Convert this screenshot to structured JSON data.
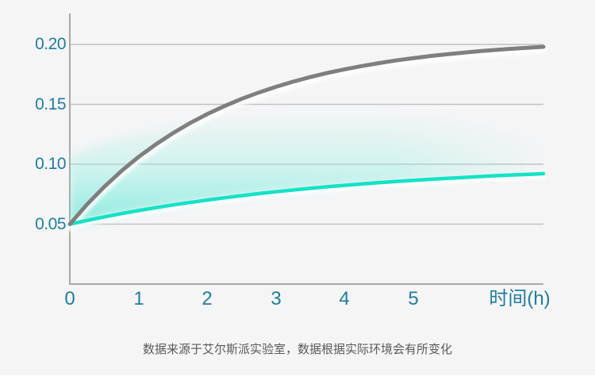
{
  "caption": "数据来源于艾尔斯派实验室，数据根据实际环境会有所变化",
  "colors": {
    "page": "#ffffff",
    "panel": "#f5f5f6",
    "grid": "#c2c2c4",
    "axis": "#a8a8aa",
    "tick_label": "#1e7d9f",
    "caption": "#595959",
    "series_gray": "#7f7f80",
    "series_teal": "#14e2c6",
    "band_top": "rgba(150,240,228,0)",
    "band_mid": "rgba(150,240,228,0.35)",
    "band_bottom": "rgba(60,228,205,0.6)"
  },
  "chart_data": {
    "type": "line",
    "title": "",
    "xlabel": "时间(h)",
    "ylabel": "",
    "grid": "horizontal",
    "legend": "none",
    "xlim": [
      0,
      6.9
    ],
    "ylim": [
      0,
      0.226
    ],
    "x_ticks": [
      {
        "value": 0,
        "label": "0"
      },
      {
        "value": 1,
        "label": "1"
      },
      {
        "value": 2,
        "label": "2"
      },
      {
        "value": 3,
        "label": "3"
      },
      {
        "value": 4,
        "label": "4"
      },
      {
        "value": 5,
        "label": "5"
      }
    ],
    "y_ticks": [
      {
        "value": 0.2,
        "label": "0.20"
      },
      {
        "value": 0.15,
        "label": "0.15"
      },
      {
        "value": 0.1,
        "label": "0.10"
      },
      {
        "value": 0.05,
        "label": "0.05"
      }
    ],
    "series": [
      {
        "name": "upper-gray-curve",
        "color": "#7f7f80",
        "x": [
          0,
          0.25,
          0.5,
          0.75,
          1,
          1.25,
          1.5,
          1.75,
          2,
          2.25,
          2.5,
          2.75,
          3,
          3.25,
          3.5,
          3.75,
          4,
          4.25,
          4.5,
          4.75,
          5,
          5.25,
          5.5,
          5.75,
          6,
          6.25,
          6.5,
          6.75,
          6.9
        ],
        "y": [
          0.05,
          0.0664,
          0.0811,
          0.0943,
          0.106,
          0.1165,
          0.1259,
          0.1343,
          0.1418,
          0.1485,
          0.1545,
          0.1598,
          0.1646,
          0.1689,
          0.1727,
          0.1762,
          0.1792,
          0.1819,
          0.1844,
          0.1866,
          0.1885,
          0.1903,
          0.1918,
          0.1932,
          0.1945,
          0.1956,
          0.1966,
          0.1975,
          0.198
        ]
      },
      {
        "name": "lower-teal-curve",
        "color": "#14e2c6",
        "x": [
          0,
          0.25,
          0.5,
          0.75,
          1,
          1.25,
          1.5,
          1.75,
          2,
          2.25,
          2.5,
          2.75,
          3,
          3.25,
          3.5,
          3.75,
          4,
          4.25,
          4.5,
          4.75,
          5,
          5.25,
          5.5,
          5.75,
          6,
          6.25,
          6.5,
          6.75,
          6.9
        ],
        "y": [
          0.05,
          0.0531,
          0.056,
          0.0588,
          0.0613,
          0.0637,
          0.066,
          0.0681,
          0.0701,
          0.072,
          0.0738,
          0.0755,
          0.077,
          0.0785,
          0.0799,
          0.0812,
          0.0824,
          0.0835,
          0.0846,
          0.0856,
          0.0865,
          0.0874,
          0.0883,
          0.089,
          0.0898,
          0.0905,
          0.0911,
          0.0917,
          0.0921
        ]
      }
    ],
    "band": {
      "name": "teal-gradient-band",
      "x": [
        0,
        0.5,
        1,
        1.5,
        2,
        2.5,
        3,
        3.5,
        4,
        4.5,
        5,
        5.5,
        6,
        6.5,
        6.9
      ],
      "upper": [
        0.107,
        0.118,
        0.126,
        0.132,
        0.137,
        0.141,
        0.143,
        0.145,
        0.145,
        0.144,
        0.142,
        0.139,
        0.133,
        0.125,
        0.118
      ],
      "lower": [
        0.05,
        0.056,
        0.0613,
        0.066,
        0.0701,
        0.0738,
        0.077,
        0.0799,
        0.0824,
        0.0846,
        0.0865,
        0.0883,
        0.0898,
        0.0911,
        0.0921
      ]
    }
  }
}
